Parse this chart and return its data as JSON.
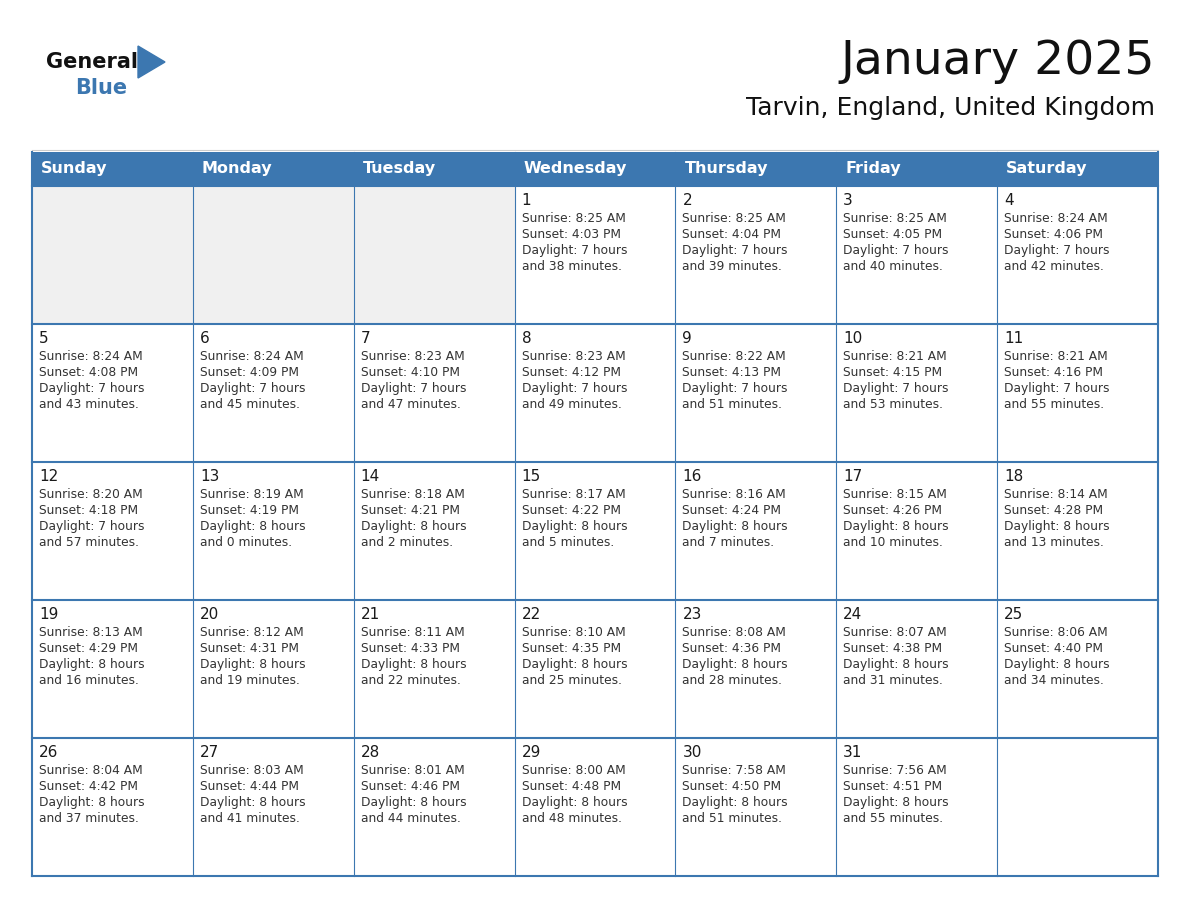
{
  "title": "January 2025",
  "subtitle": "Tarvin, England, United Kingdom",
  "header_color": "#3C77B0",
  "header_text_color": "#FFFFFF",
  "border_color": "#3C77B0",
  "cell_bg_white": "#FFFFFF",
  "cell_bg_gray": "#F0F0F0",
  "text_color_dark": "#1a1a1a",
  "text_color_info": "#333333",
  "day_headers": [
    "Sunday",
    "Monday",
    "Tuesday",
    "Wednesday",
    "Thursday",
    "Friday",
    "Saturday"
  ],
  "logo_general_color": "#1a1a1a",
  "logo_blue_color": "#3C77B0",
  "calendar_data": [
    [
      {
        "day": "",
        "info": ""
      },
      {
        "day": "",
        "info": ""
      },
      {
        "day": "",
        "info": ""
      },
      {
        "day": "1",
        "info": "Sunrise: 8:25 AM\nSunset: 4:03 PM\nDaylight: 7 hours\nand 38 minutes."
      },
      {
        "day": "2",
        "info": "Sunrise: 8:25 AM\nSunset: 4:04 PM\nDaylight: 7 hours\nand 39 minutes."
      },
      {
        "day": "3",
        "info": "Sunrise: 8:25 AM\nSunset: 4:05 PM\nDaylight: 7 hours\nand 40 minutes."
      },
      {
        "day": "4",
        "info": "Sunrise: 8:24 AM\nSunset: 4:06 PM\nDaylight: 7 hours\nand 42 minutes."
      }
    ],
    [
      {
        "day": "5",
        "info": "Sunrise: 8:24 AM\nSunset: 4:08 PM\nDaylight: 7 hours\nand 43 minutes."
      },
      {
        "day": "6",
        "info": "Sunrise: 8:24 AM\nSunset: 4:09 PM\nDaylight: 7 hours\nand 45 minutes."
      },
      {
        "day": "7",
        "info": "Sunrise: 8:23 AM\nSunset: 4:10 PM\nDaylight: 7 hours\nand 47 minutes."
      },
      {
        "day": "8",
        "info": "Sunrise: 8:23 AM\nSunset: 4:12 PM\nDaylight: 7 hours\nand 49 minutes."
      },
      {
        "day": "9",
        "info": "Sunrise: 8:22 AM\nSunset: 4:13 PM\nDaylight: 7 hours\nand 51 minutes."
      },
      {
        "day": "10",
        "info": "Sunrise: 8:21 AM\nSunset: 4:15 PM\nDaylight: 7 hours\nand 53 minutes."
      },
      {
        "day": "11",
        "info": "Sunrise: 8:21 AM\nSunset: 4:16 PM\nDaylight: 7 hours\nand 55 minutes."
      }
    ],
    [
      {
        "day": "12",
        "info": "Sunrise: 8:20 AM\nSunset: 4:18 PM\nDaylight: 7 hours\nand 57 minutes."
      },
      {
        "day": "13",
        "info": "Sunrise: 8:19 AM\nSunset: 4:19 PM\nDaylight: 8 hours\nand 0 minutes."
      },
      {
        "day": "14",
        "info": "Sunrise: 8:18 AM\nSunset: 4:21 PM\nDaylight: 8 hours\nand 2 minutes."
      },
      {
        "day": "15",
        "info": "Sunrise: 8:17 AM\nSunset: 4:22 PM\nDaylight: 8 hours\nand 5 minutes."
      },
      {
        "day": "16",
        "info": "Sunrise: 8:16 AM\nSunset: 4:24 PM\nDaylight: 8 hours\nand 7 minutes."
      },
      {
        "day": "17",
        "info": "Sunrise: 8:15 AM\nSunset: 4:26 PM\nDaylight: 8 hours\nand 10 minutes."
      },
      {
        "day": "18",
        "info": "Sunrise: 8:14 AM\nSunset: 4:28 PM\nDaylight: 8 hours\nand 13 minutes."
      }
    ],
    [
      {
        "day": "19",
        "info": "Sunrise: 8:13 AM\nSunset: 4:29 PM\nDaylight: 8 hours\nand 16 minutes."
      },
      {
        "day": "20",
        "info": "Sunrise: 8:12 AM\nSunset: 4:31 PM\nDaylight: 8 hours\nand 19 minutes."
      },
      {
        "day": "21",
        "info": "Sunrise: 8:11 AM\nSunset: 4:33 PM\nDaylight: 8 hours\nand 22 minutes."
      },
      {
        "day": "22",
        "info": "Sunrise: 8:10 AM\nSunset: 4:35 PM\nDaylight: 8 hours\nand 25 minutes."
      },
      {
        "day": "23",
        "info": "Sunrise: 8:08 AM\nSunset: 4:36 PM\nDaylight: 8 hours\nand 28 minutes."
      },
      {
        "day": "24",
        "info": "Sunrise: 8:07 AM\nSunset: 4:38 PM\nDaylight: 8 hours\nand 31 minutes."
      },
      {
        "day": "25",
        "info": "Sunrise: 8:06 AM\nSunset: 4:40 PM\nDaylight: 8 hours\nand 34 minutes."
      }
    ],
    [
      {
        "day": "26",
        "info": "Sunrise: 8:04 AM\nSunset: 4:42 PM\nDaylight: 8 hours\nand 37 minutes."
      },
      {
        "day": "27",
        "info": "Sunrise: 8:03 AM\nSunset: 4:44 PM\nDaylight: 8 hours\nand 41 minutes."
      },
      {
        "day": "28",
        "info": "Sunrise: 8:01 AM\nSunset: 4:46 PM\nDaylight: 8 hours\nand 44 minutes."
      },
      {
        "day": "29",
        "info": "Sunrise: 8:00 AM\nSunset: 4:48 PM\nDaylight: 8 hours\nand 48 minutes."
      },
      {
        "day": "30",
        "info": "Sunrise: 7:58 AM\nSunset: 4:50 PM\nDaylight: 8 hours\nand 51 minutes."
      },
      {
        "day": "31",
        "info": "Sunrise: 7:56 AM\nSunset: 4:51 PM\nDaylight: 8 hours\nand 55 minutes."
      },
      {
        "day": "",
        "info": ""
      }
    ]
  ]
}
